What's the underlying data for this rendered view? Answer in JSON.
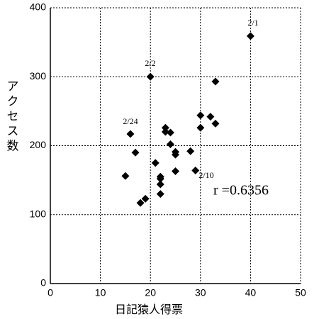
{
  "chart_data": {
    "type": "scatter",
    "x_label": "日記猿人得票",
    "y_label": "アクセス数",
    "x": [
      40,
      20,
      33,
      30,
      32,
      33,
      30,
      23,
      23,
      24,
      16,
      24,
      25,
      25,
      17,
      28,
      21,
      29,
      25,
      22,
      22,
      15,
      22,
      22,
      19,
      18
    ],
    "values": [
      359,
      300,
      293,
      244,
      242,
      232,
      226,
      226,
      220,
      219,
      217,
      202,
      191,
      187,
      190,
      192,
      175,
      164,
      163,
      155,
      152,
      156,
      144,
      130,
      123,
      117
    ],
    "color": "#000000",
    "xlim": [
      0,
      50
    ],
    "xticks": [
      0,
      10,
      20,
      30,
      40,
      50
    ],
    "ylim": [
      0,
      400
    ],
    "yticks": [
      0,
      100,
      200,
      300,
      400
    ],
    "grid": true,
    "annotations": [
      "2/1",
      "2/2",
      "2/24",
      "2/10",
      "r =0.6356"
    ]
  }
}
